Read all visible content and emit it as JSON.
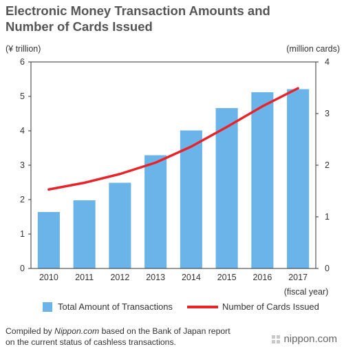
{
  "title": {
    "line1": "Electronic Money Transaction Amounts and",
    "line2": "Number of Cards Issued"
  },
  "legend": {
    "bar_label": "Total Amount of Transactions",
    "line_label": "Number of Cards Issued"
  },
  "footer": {
    "prefix": "Compiled by ",
    "site": "Nippon.com",
    "suffix_line1": " based on the Bank of Japan report",
    "line2": "on the current status of cashless transactions."
  },
  "logo": {
    "text": "nippon.com"
  },
  "colors": {
    "bar": "#6ab4ea",
    "line": "#e8242b",
    "axis": "#333333",
    "grid": "#d9d9d9"
  },
  "chart_data": {
    "type": "bar",
    "categories": [
      "2010",
      "2011",
      "2012",
      "2013",
      "2014",
      "2015",
      "2016",
      "2017"
    ],
    "xlabel": "(fiscal year)",
    "ylabel_left": "(¥ trillion)",
    "ylabel_right": "(million cards)",
    "ylim_left": [
      0,
      6
    ],
    "ylim_right": [
      0,
      4
    ],
    "yticks_left": [
      "0",
      "1",
      "2",
      "3",
      "4",
      "5",
      "6"
    ],
    "yticks_right": [
      "0",
      "1",
      "2",
      "3",
      "4"
    ],
    "series": [
      {
        "name": "Total Amount of Transactions",
        "type": "bar",
        "axis": "left",
        "values": [
          1.64,
          1.98,
          2.49,
          3.29,
          4.01,
          4.66,
          5.12,
          5.21
        ]
      },
      {
        "name": "Number of Cards Issued",
        "type": "line",
        "axis": "right",
        "values": [
          1.53,
          1.66,
          1.83,
          2.05,
          2.36,
          2.74,
          3.14,
          3.49
        ]
      }
    ],
    "grid": false,
    "legend_position": "bottom"
  }
}
